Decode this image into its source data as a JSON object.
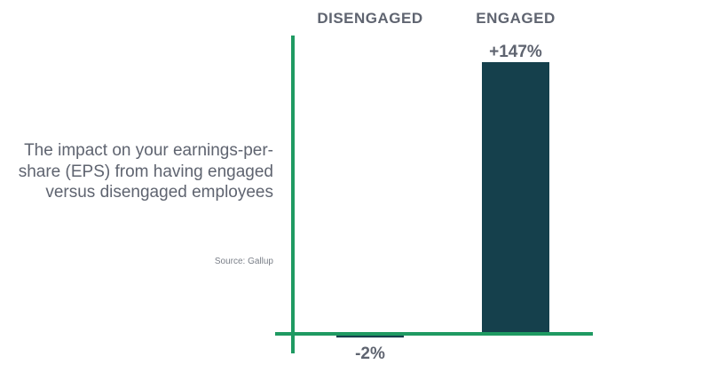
{
  "description": "The impact on your earnings-per-share (EPS) from having engaged versus disengaged employees",
  "source": "Source: Gallup",
  "colors": {
    "bar": "#15404c",
    "axis": "#1f9a62",
    "text": "#5f6470"
  },
  "chart_data": {
    "type": "bar",
    "categories": [
      "DISENGAGED",
      "ENGAGED"
    ],
    "values": [
      -2,
      147
    ],
    "value_labels": [
      "-2%",
      "+147%"
    ],
    "grid": false,
    "legend": "none"
  }
}
